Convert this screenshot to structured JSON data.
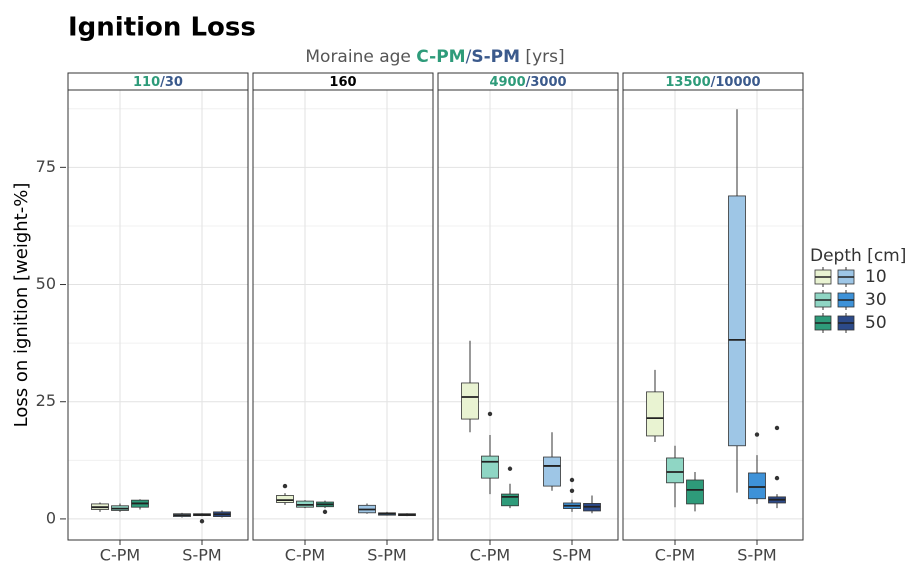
{
  "chart_data": {
    "type": "box",
    "title": "Ignition Loss",
    "subtitle_parts": [
      {
        "text": "Moraine age ",
        "color": "#555555"
      },
      {
        "text": "C-PM",
        "color": "#2e9b7a",
        "bold": true
      },
      {
        "text": "/",
        "color": "#3b5a8c"
      },
      {
        "text": "S-PM",
        "color": "#3b5a8c",
        "bold": true
      },
      {
        "text": " [yrs]",
        "color": "#555555"
      }
    ],
    "y_label": "Loss on ignition [weight-%]",
    "ylim": [
      -4.5,
      91.5
    ],
    "yticks": [
      0,
      25,
      50,
      75
    ],
    "minor_grid_yticks": [
      12.5,
      37.5,
      62.5,
      87.5
    ],
    "grid": true,
    "colors": [
      [
        "#e9f3d2",
        "#8fd6c4",
        "#2e9b7a"
      ],
      [
        "#9ec6e6",
        "#3e92d8",
        "#2c4a8a"
      ]
    ],
    "legend": {
      "title": "Depth [cm]",
      "labels": [
        "10",
        "30",
        "50"
      ],
      "position": "right"
    },
    "facets": [
      {
        "label_parts": [
          {
            "text": "110",
            "color": "#2e9b7a"
          },
          {
            "text": "/30",
            "color": "#3b5a8c"
          }
        ],
        "groups": [
          {
            "category": "C-PM",
            "boxes": [
              {
                "min": 1.5,
                "q1": 2,
                "median": 2.5,
                "q3": 3.2,
                "max": 3.5,
                "outliers": []
              },
              {
                "min": 1.5,
                "q1": 1.8,
                "median": 2.2,
                "q3": 2.8,
                "max": 3.3,
                "outliers": []
              },
              {
                "min": 2,
                "q1": 2.5,
                "median": 3.3,
                "q3": 4,
                "max": 4.2,
                "outliers": []
              }
            ]
          },
          {
            "category": "S-PM",
            "boxes": [
              {
                "min": 0.3,
                "q1": 0.5,
                "median": 0.8,
                "q3": 1.1,
                "max": 1.3,
                "outliers": []
              },
              {
                "min": 0.6,
                "q1": 0.7,
                "median": 0.9,
                "q3": 1.1,
                "max": 1.2,
                "outliers": [
                  -0.5
                ]
              },
              {
                "min": 0.3,
                "q1": 0.5,
                "median": 1,
                "q3": 1.5,
                "max": 1.8,
                "outliers": []
              }
            ]
          }
        ]
      },
      {
        "label_parts": [
          {
            "text": "160",
            "color": "#000000"
          }
        ],
        "groups": [
          {
            "category": "C-PM",
            "boxes": [
              {
                "min": 3,
                "q1": 3.5,
                "median": 4,
                "q3": 5,
                "max": 5.5,
                "outliers": [
                  7
                ]
              },
              {
                "min": 2.3,
                "q1": 2.5,
                "median": 3,
                "q3": 3.8,
                "max": 4,
                "outliers": []
              },
              {
                "min": 2.3,
                "q1": 2.6,
                "median": 3.1,
                "q3": 3.6,
                "max": 3.9,
                "outliers": [
                  1.5
                ]
              }
            ]
          },
          {
            "category": "S-PM",
            "boxes": [
              {
                "min": 1.1,
                "q1": 1.3,
                "median": 2,
                "q3": 2.9,
                "max": 3.3,
                "outliers": []
              },
              {
                "min": 0.7,
                "q1": 0.8,
                "median": 1.1,
                "q3": 1.3,
                "max": 1.5,
                "outliers": []
              },
              {
                "min": 0.6,
                "q1": 0.7,
                "median": 0.9,
                "q3": 1.1,
                "max": 1.2,
                "outliers": []
              }
            ]
          }
        ]
      },
      {
        "label_parts": [
          {
            "text": "4900",
            "color": "#2e9b7a"
          },
          {
            "text": "/3000",
            "color": "#3b5a8c"
          }
        ],
        "groups": [
          {
            "category": "C-PM",
            "boxes": [
              {
                "min": 18.5,
                "q1": 21.3,
                "median": 26,
                "q3": 29,
                "max": 38,
                "outliers": []
              },
              {
                "min": 5.3,
                "q1": 8.7,
                "median": 12.2,
                "q3": 13.4,
                "max": 17.9,
                "outliers": [
                  22.4
                ]
              },
              {
                "min": 2.3,
                "q1": 2.8,
                "median": 4.7,
                "q3": 5.3,
                "max": 7.5,
                "outliers": [
                  10.7
                ]
              }
            ]
          },
          {
            "category": "S-PM",
            "boxes": [
              {
                "min": 6,
                "q1": 7,
                "median": 11.3,
                "q3": 13.2,
                "max": 18.5,
                "outliers": []
              },
              {
                "min": 1.5,
                "q1": 2.2,
                "median": 2.8,
                "q3": 3.4,
                "max": 4.1,
                "outliers": [
                  8.3,
                  6
                ]
              },
              {
                "min": 1.2,
                "q1": 1.7,
                "median": 2.6,
                "q3": 3.3,
                "max": 5,
                "outliers": []
              }
            ]
          }
        ]
      },
      {
        "label_parts": [
          {
            "text": "13500",
            "color": "#2e9b7a"
          },
          {
            "text": "/10000",
            "color": "#3b5a8c"
          }
        ],
        "groups": [
          {
            "category": "C-PM",
            "boxes": [
              {
                "min": 16.4,
                "q1": 17.7,
                "median": 21.5,
                "q3": 27.1,
                "max": 31.8,
                "outliers": []
              },
              {
                "min": 2.5,
                "q1": 7.7,
                "median": 10,
                "q3": 13,
                "max": 15.6,
                "outliers": []
              },
              {
                "min": 1.6,
                "q1": 3.2,
                "median": 6.2,
                "q3": 8.3,
                "max": 10,
                "outliers": []
              }
            ]
          },
          {
            "category": "S-PM",
            "boxes": [
              {
                "min": 5.6,
                "q1": 15.6,
                "median": 38.2,
                "q3": 68.9,
                "max": 87.4,
                "outliers": []
              },
              {
                "min": 3.2,
                "q1": 4.3,
                "median": 6.8,
                "q3": 9.8,
                "max": 13.6,
                "outliers": [
                  18
                ]
              },
              {
                "min": 2.3,
                "q1": 3.4,
                "median": 4.1,
                "q3": 4.7,
                "max": 5.3,
                "outliers": [
                  8.7,
                  19.4
                ]
              }
            ]
          }
        ]
      }
    ]
  }
}
